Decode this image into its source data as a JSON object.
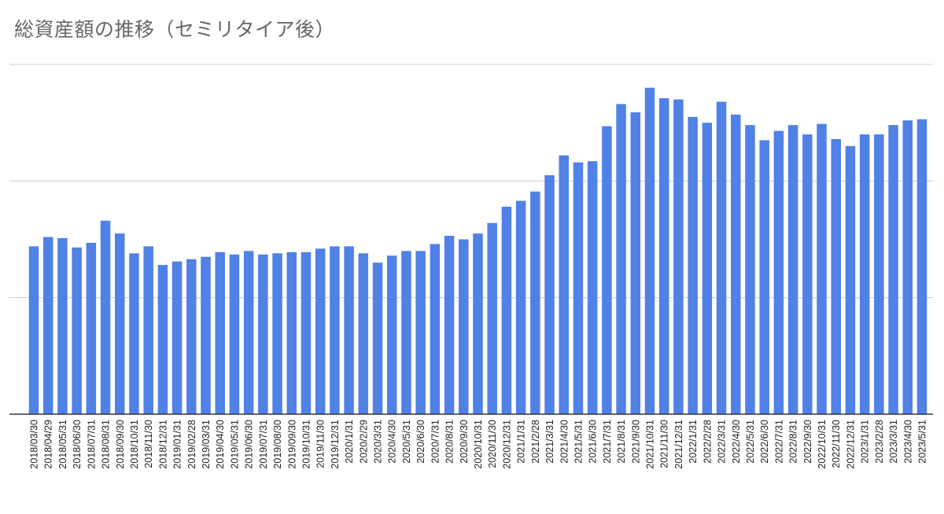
{
  "chart_data": {
    "type": "bar",
    "title": "総資産額の推移（セミリタイア後）",
    "xlabel": "",
    "ylabel": "",
    "ylim": [
      0,
      3
    ],
    "y_tick_labels_shown": false,
    "gridlines": [
      1,
      2,
      3
    ],
    "grid": true,
    "legend": "none",
    "bar_color": "#5081E6",
    "categories": [
      "2018/03/30",
      "2018/04/29",
      "2018/05/31",
      "2018/06/30",
      "2018/07/31",
      "2018/08/31",
      "2018/09/30",
      "2018/10/31",
      "2018/11/30",
      "2018/12/31",
      "2019/01/31",
      "2019/02/28",
      "2019/03/31",
      "2019/04/30",
      "2019/05/31",
      "2019/06/30",
      "2019/07/31",
      "2019/08/30",
      "2019/09/30",
      "2019/10/31",
      "2019/11/30",
      "2019/12/31",
      "2020/1/31",
      "2020/2/29",
      "2020/3/31",
      "2020/4/30",
      "2020/5/31",
      "2020/6/30",
      "2020/7/31",
      "2020/8/31",
      "2020/9/30",
      "2020/10/31",
      "2020/11/30",
      "2020/12/31",
      "2021/1/31",
      "2021/2/28",
      "2021/3/31",
      "2021/4/30",
      "2021/5/31",
      "2021/6/30",
      "2021/7/31",
      "2021/8/31",
      "2021/9/30",
      "2021/10/31",
      "2021/11/30",
      "2021/12/31",
      "2022/1/31",
      "2022/2/28",
      "2022/3/31",
      "2022/4/30",
      "2022/5/31",
      "2022/6/30",
      "2022/7/31",
      "2022/8/31",
      "2022/9/30",
      "2022/10/31",
      "2022/11/30",
      "2022/12/31",
      "2023/1/31",
      "2023/2/28",
      "2023/3/31",
      "2023/4/30",
      "2023/5/31"
    ],
    "values": [
      1.44,
      1.52,
      1.51,
      1.43,
      1.47,
      1.66,
      1.55,
      1.38,
      1.44,
      1.28,
      1.31,
      1.33,
      1.35,
      1.39,
      1.37,
      1.4,
      1.37,
      1.38,
      1.39,
      1.39,
      1.42,
      1.44,
      1.44,
      1.38,
      1.3,
      1.36,
      1.4,
      1.4,
      1.46,
      1.53,
      1.5,
      1.55,
      1.64,
      1.78,
      1.83,
      1.91,
      2.05,
      2.22,
      2.16,
      2.17,
      2.47,
      2.66,
      2.59,
      2.8,
      2.71,
      2.7,
      2.55,
      2.5,
      2.68,
      2.57,
      2.48,
      2.35,
      2.43,
      2.48,
      2.4,
      2.49,
      2.36,
      2.3,
      2.4,
      2.4,
      2.48,
      2.52,
      2.53
    ]
  }
}
